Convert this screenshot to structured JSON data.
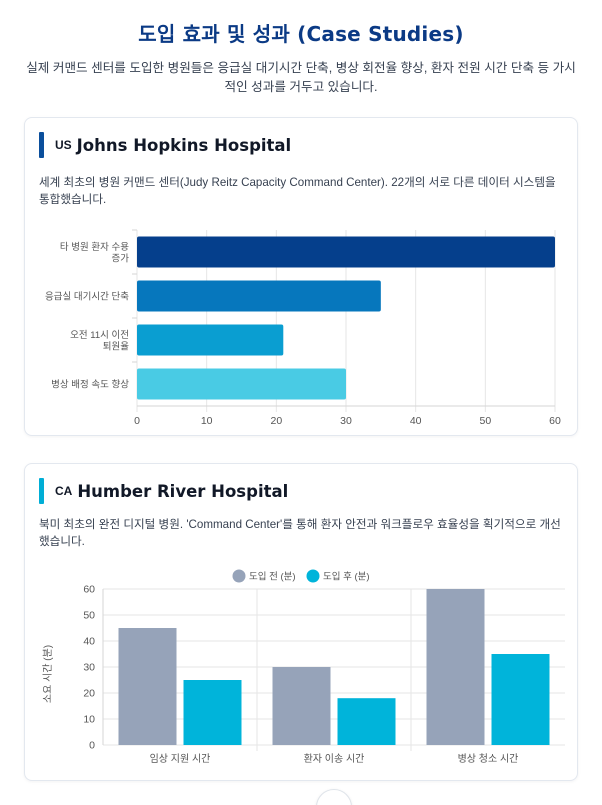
{
  "page": {
    "title": "도입 효과 및 성과 (Case Studies)",
    "subtitle": "실제 커맨드 센터를 도입한 병원들은 응급실 대기시간 단축, 병상 회전율 향상, 환자 전원 시간 단축 등 가시적인 성과를 거두고 있습니다."
  },
  "cases": [
    {
      "flag": "US",
      "name": "Johns Hopkins Hospital",
      "accent_color": "#0b4f9c",
      "description": "세계 최초의 병원 커맨드 센터(Judy Reitz Capacity Command Center). 22개의 서로 다른 데이터 시스템을 통합했습니다."
    },
    {
      "flag": "CA",
      "name": "Humber River Hospital",
      "accent_color": "#00aed6",
      "description": "북미 최초의 완전 디지털 병원. 'Command Center'를 통해 환자 안전과 워크플로우 효율성을 획기적으로 개선했습니다."
    }
  ],
  "chart_data": [
    {
      "type": "bar",
      "orientation": "horizontal",
      "categories": [
        [
          "타 병원 환자 수용",
          "증가"
        ],
        [
          "응급실 대기시간 단축"
        ],
        [
          "오전 11시 이전",
          "퇴원율"
        ],
        [
          "병상 배정 속도 향상"
        ]
      ],
      "values": [
        60,
        35,
        21,
        30
      ],
      "colors": [
        "#053f8c",
        "#0677bd",
        "#0a9ed1",
        "#49cbe4"
      ],
      "xlim": [
        0,
        60
      ],
      "xticks": [
        0,
        10,
        20,
        30,
        40,
        50,
        60
      ],
      "grid": true,
      "legend": false
    },
    {
      "type": "bar",
      "orientation": "vertical",
      "categories": [
        "임상 지원 시간",
        "환자 이송 시간",
        "병상 청소 시간"
      ],
      "series": [
        {
          "name": "도입 전 (분)",
          "values": [
            45,
            30,
            60
          ],
          "color": "#96a3b9"
        },
        {
          "name": "도입 후 (분)",
          "values": [
            25,
            18,
            35
          ],
          "color": "#00b4da"
        }
      ],
      "ylabel": "소요 시간 (분)",
      "ylim": [
        0,
        60
      ],
      "yticks": [
        0,
        10,
        20,
        30,
        40,
        50,
        60
      ],
      "grid": true,
      "legend": "top"
    }
  ]
}
